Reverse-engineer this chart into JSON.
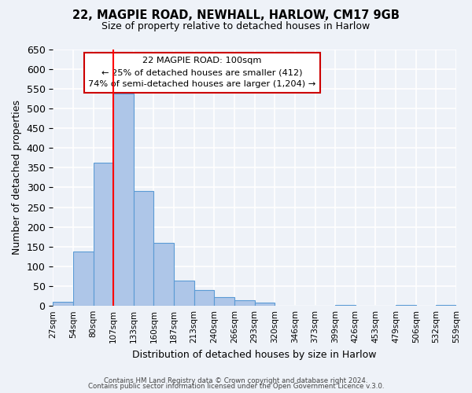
{
  "title": "22, MAGPIE ROAD, NEWHALL, HARLOW, CM17 9GB",
  "subtitle": "Size of property relative to detached houses in Harlow",
  "xlabel": "Distribution of detached houses by size in Harlow",
  "ylabel": "Number of detached properties",
  "bar_values": [
    10,
    137,
    362,
    537,
    291,
    160,
    65,
    40,
    22,
    15,
    8,
    0,
    0,
    0,
    2,
    0,
    0,
    2,
    0,
    2
  ],
  "bin_labels": [
    "27sqm",
    "54sqm",
    "80sqm",
    "107sqm",
    "133sqm",
    "160sqm",
    "187sqm",
    "213sqm",
    "240sqm",
    "266sqm",
    "293sqm",
    "320sqm",
    "346sqm",
    "373sqm",
    "399sqm",
    "426sqm",
    "453sqm",
    "479sqm",
    "506sqm",
    "532sqm",
    "559sqm"
  ],
  "bar_color": "#aec6e8",
  "bar_edge_color": "#5b9bd5",
  "ylim": [
    0,
    650
  ],
  "yticks": [
    0,
    50,
    100,
    150,
    200,
    250,
    300,
    350,
    400,
    450,
    500,
    550,
    600,
    650
  ],
  "red_line_bin_index": 3,
  "annotation_title": "22 MAGPIE ROAD: 100sqm",
  "annotation_line1": "← 25% of detached houses are smaller (412)",
  "annotation_line2": "74% of semi-detached houses are larger (1,204) →",
  "annotation_box_color": "#ffffff",
  "annotation_border_color": "#cc0000",
  "footer1": "Contains HM Land Registry data © Crown copyright and database right 2024.",
  "footer2": "Contains public sector information licensed under the Open Government Licence v.3.0.",
  "bg_color": "#eef2f8",
  "plot_bg_color": "#eef2f8",
  "grid_color": "#ffffff"
}
